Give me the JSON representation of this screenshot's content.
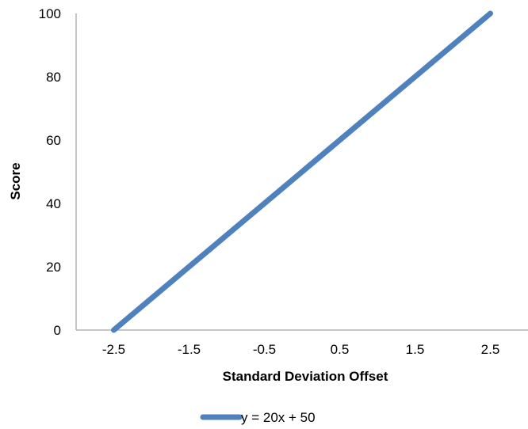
{
  "chart_data": {
    "type": "line",
    "title": "",
    "xlabel": "Standard Deviation Offset",
    "ylabel": "Score",
    "x_ticks": [
      "-2.5",
      "-1.5",
      "-0.5",
      "0.5",
      "1.5",
      "2.5"
    ],
    "y_ticks": [
      "0",
      "20",
      "40",
      "60",
      "80",
      "100"
    ],
    "xlim": [
      -3,
      3
    ],
    "ylim": [
      0,
      100
    ],
    "grid": false,
    "legend_position": "bottom",
    "series": [
      {
        "name": "y = 20x + 50",
        "color": "#4f81bd",
        "x": [
          -2.5,
          2.5
        ],
        "y": [
          0,
          100
        ]
      }
    ]
  }
}
